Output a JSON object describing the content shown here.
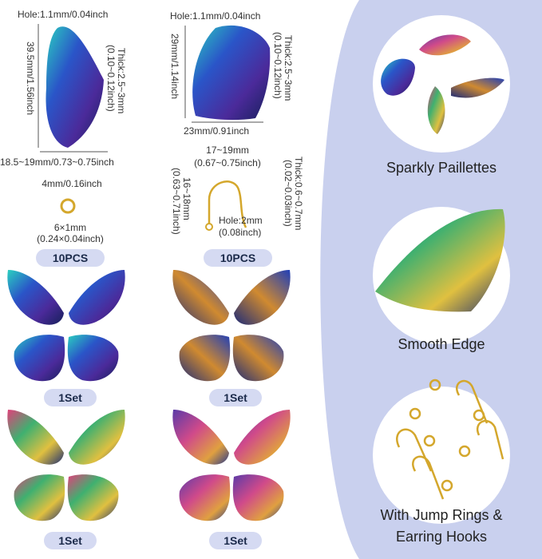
{
  "left_pieces": {
    "long_wing": {
      "hole": "Hole:1.1mm/0.04inch",
      "length": "39.5mm/1.56inch",
      "thick": "Thick:2.5~3mm",
      "thick_inch": "(0.10~0.12inch)",
      "width": "18.5~19mm/0.73~0.75inch"
    },
    "round_wing": {
      "hole": "Hole:1.1mm/0.04inch",
      "length": "29mm/1.14inch",
      "thick": "Thick:2.5~3mm",
      "thick_inch": "(0.10~0.12inch)",
      "width": "23mm/0.91inch"
    },
    "jump_ring": {
      "inner": "4mm/0.16inch",
      "outer": "6×1mm",
      "outer_inch": "(0.24×0.04inch)",
      "count": "10PCS"
    },
    "earring_hook": {
      "width": "17~19mm",
      "width_inch": "(0.67~0.75inch)",
      "length": "16~18mm",
      "length_inch": "(0.63~0.71inch)",
      "thick": "Thick:0.6~0.7mm",
      "thick_inch": "(0.02~0.03inch)",
      "hole": "Hole:2mm",
      "hole_inch": "(0.08inch)",
      "count": "10PCS"
    },
    "sets": [
      "1Set",
      "1Set",
      "1Set",
      "1Set"
    ]
  },
  "features": [
    {
      "label": "Sparkly Paillettes"
    },
    {
      "label": "Smooth Edge"
    },
    {
      "label": "With Jump Rings &",
      "label_2": "Earring Hooks"
    }
  ]
}
